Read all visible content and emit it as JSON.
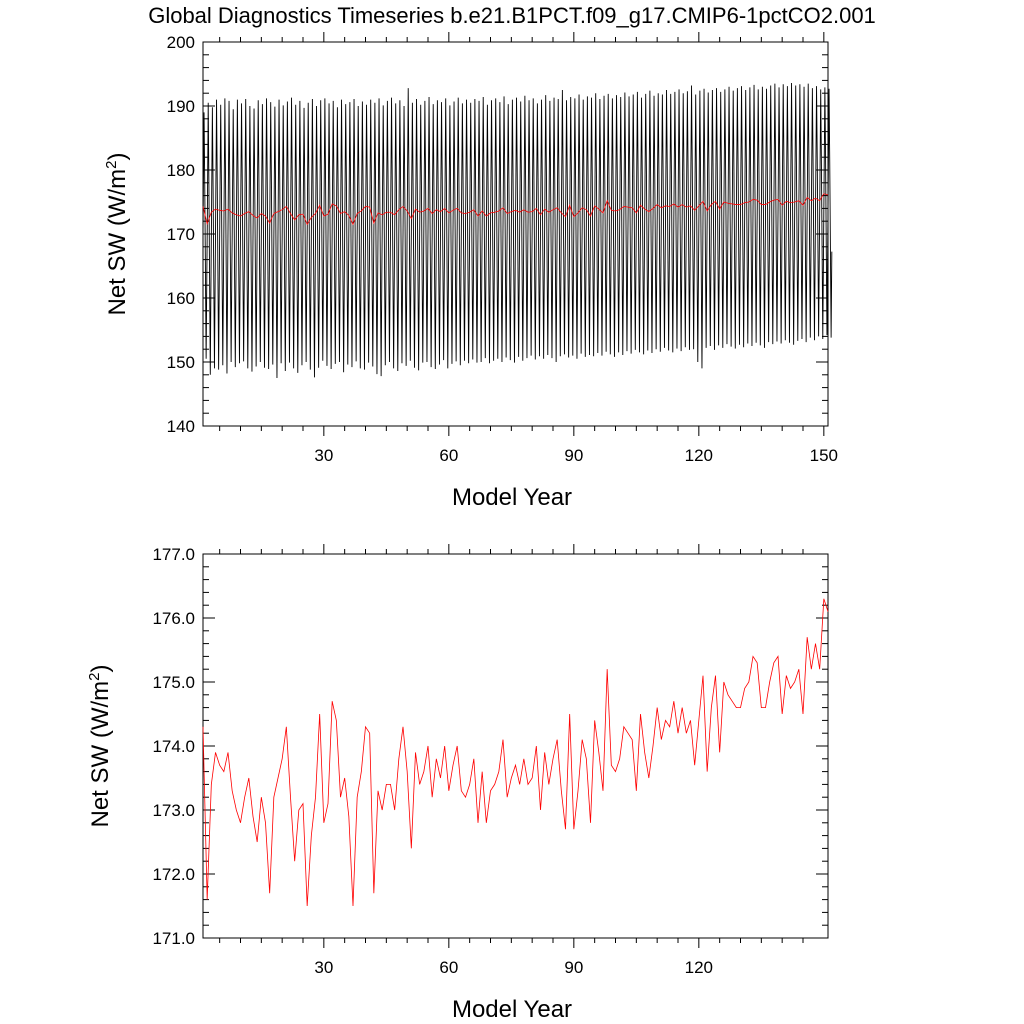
{
  "figure": {
    "title": "Global Diagnostics Timeseries b.e21.B1PCT.f09_g17.CMIP6-1pctCO2.001"
  },
  "chart_data": [
    {
      "type": "line",
      "xlabel": "Model Year",
      "ylabel_main": "Net SW (W/m",
      "ylabel_sup": "2",
      "ylabel_tail": ")",
      "xlim": [
        1,
        151
      ],
      "ylim": [
        140,
        200
      ],
      "x_ticks": [
        "30",
        "60",
        "90",
        "120",
        "150"
      ],
      "x_tick_values": [
        30,
        60,
        90,
        120,
        150
      ],
      "y_ticks": [
        "140",
        "150",
        "160",
        "170",
        "180",
        "190",
        "200"
      ],
      "y_tick_values": [
        140,
        150,
        160,
        170,
        180,
        190,
        200
      ],
      "grid": false,
      "colors": {
        "monthly": "#000000",
        "annual": "#ff0000"
      },
      "series": [
        {
          "id": "monthly",
          "color": "#000000",
          "description_of_values": "monthly global mean net SW, seasonal cycle; per-year approximate min and max",
          "year_min": [
            150.5,
            148.0,
            149.0,
            148.8,
            149.5,
            148.2,
            150.0,
            149.2,
            149.8,
            150.1,
            149.0,
            148.5,
            149.3,
            150.0,
            149.1,
            148.9,
            149.6,
            147.5,
            149.8,
            148.6,
            149.9,
            149.0,
            148.3,
            149.5,
            150.0,
            148.8,
            147.6,
            149.1,
            150.2,
            149.4,
            148.9,
            149.7,
            150.0,
            148.4,
            149.6,
            149.2,
            150.1,
            149.0,
            148.8,
            149.9,
            149.3,
            148.1,
            147.8,
            149.5,
            150.0,
            149.0,
            148.6,
            149.8,
            149.4,
            150.2,
            149.1,
            148.7,
            149.9,
            150.0,
            149.2,
            148.9,
            149.6,
            150.3,
            149.0,
            149.7,
            150.1,
            149.5,
            150.2,
            149.8,
            150.4,
            149.9,
            150.0,
            150.6,
            149.8,
            150.2,
            150.5,
            150.0,
            150.7,
            150.3,
            149.9,
            150.8,
            150.2,
            150.6,
            151.0,
            150.4,
            150.9,
            150.5,
            151.1,
            150.6,
            150.0,
            150.9,
            151.2,
            150.7,
            151.0,
            150.5,
            151.3,
            150.8,
            151.1,
            150.9,
            151.4,
            151.0,
            151.6,
            151.2,
            150.8,
            151.5,
            151.1,
            151.7,
            151.3,
            151.9,
            151.5,
            151.2,
            151.8,
            151.4,
            152.0,
            151.6,
            152.2,
            151.8,
            151.5,
            152.1,
            151.7,
            152.3,
            151.9,
            152.0,
            150.0,
            149.0,
            152.2,
            152.5,
            151.9,
            152.6,
            152.2,
            152.8,
            152.4,
            152.1,
            152.7,
            152.3,
            152.9,
            152.5,
            153.0,
            152.6,
            152.2,
            153.1,
            152.8,
            153.2,
            152.9,
            153.4,
            153.0,
            152.7,
            153.3,
            153.6,
            153.1,
            153.8,
            153.4,
            154.0,
            153.6,
            154.2,
            153.8
          ],
          "year_max": [
            189.0,
            190.5,
            189.8,
            191.0,
            190.2,
            191.2,
            190.8,
            189.5,
            191.0,
            190.4,
            191.1,
            190.0,
            189.6,
            190.9,
            190.3,
            191.2,
            190.6,
            189.9,
            191.0,
            190.1,
            190.7,
            191.3,
            190.2,
            190.8,
            189.7,
            190.5,
            191.1,
            190.0,
            190.9,
            191.2,
            190.4,
            190.8,
            189.8,
            191.0,
            190.3,
            190.6,
            191.1,
            190.0,
            190.7,
            190.2,
            191.0,
            190.5,
            191.2,
            190.1,
            190.8,
            191.3,
            190.4,
            190.9,
            190.0,
            192.8,
            190.5,
            191.1,
            190.2,
            190.8,
            191.4,
            190.3,
            190.9,
            190.6,
            191.2,
            190.1,
            190.7,
            191.3,
            190.4,
            191.0,
            190.5,
            191.1,
            190.8,
            191.4,
            190.2,
            190.9,
            191.2,
            190.6,
            191.5,
            190.3,
            191.0,
            191.3,
            190.7,
            191.6,
            190.9,
            191.2,
            190.4,
            191.0,
            191.7,
            190.8,
            191.3,
            191.1,
            192.5,
            190.9,
            191.4,
            191.2,
            191.8,
            191.0,
            191.5,
            191.3,
            192.0,
            191.1,
            191.6,
            191.9,
            191.2,
            191.7,
            191.4,
            192.1,
            191.5,
            191.8,
            192.2,
            191.3,
            191.9,
            192.4,
            191.6,
            192.0,
            191.8,
            192.5,
            191.9,
            192.2,
            192.6,
            192.0,
            192.3,
            193.2,
            191.8,
            192.4,
            192.7,
            192.1,
            192.5,
            192.8,
            192.2,
            192.6,
            193.0,
            192.4,
            192.8,
            193.1,
            192.5,
            192.9,
            193.3,
            192.6,
            193.0,
            192.7,
            193.2,
            193.5,
            192.9,
            193.4,
            193.1,
            193.6,
            193.2,
            193.4,
            193.0,
            193.5,
            192.8,
            193.1,
            192.6,
            192.9,
            192.7
          ]
        },
        {
          "id": "annual",
          "color": "#ff0000",
          "description_of_values": "annual global mean net SW",
          "x": [
            1,
            2,
            3,
            4,
            5,
            6,
            7,
            8,
            9,
            10,
            11,
            12,
            13,
            14,
            15,
            16,
            17,
            18,
            19,
            20,
            21,
            22,
            23,
            24,
            25,
            26,
            27,
            28,
            29,
            30,
            31,
            32,
            33,
            34,
            35,
            36,
            37,
            38,
            39,
            40,
            41,
            42,
            43,
            44,
            45,
            46,
            47,
            48,
            49,
            50,
            51,
            52,
            53,
            54,
            55,
            56,
            57,
            58,
            59,
            60,
            61,
            62,
            63,
            64,
            65,
            66,
            67,
            68,
            69,
            70,
            71,
            72,
            73,
            74,
            75,
            76,
            77,
            78,
            79,
            80,
            81,
            82,
            83,
            84,
            85,
            86,
            87,
            88,
            89,
            90,
            91,
            92,
            93,
            94,
            95,
            96,
            97,
            98,
            99,
            100,
            101,
            102,
            103,
            104,
            105,
            106,
            107,
            108,
            109,
            110,
            111,
            112,
            113,
            114,
            115,
            116,
            117,
            118,
            119,
            120,
            121,
            122,
            123,
            124,
            125,
            126,
            127,
            128,
            129,
            130,
            131,
            132,
            133,
            134,
            135,
            136,
            137,
            138,
            139,
            140,
            141,
            142,
            143,
            144,
            145,
            146,
            147,
            148,
            149,
            150,
            151
          ],
          "values": [
            174.3,
            171.6,
            173.4,
            173.9,
            173.7,
            173.6,
            173.9,
            173.3,
            173.0,
            172.8,
            173.2,
            173.5,
            172.9,
            172.5,
            173.2,
            172.8,
            171.7,
            173.2,
            173.5,
            173.8,
            174.3,
            173.2,
            172.2,
            173.0,
            173.1,
            171.5,
            172.6,
            173.2,
            174.5,
            172.8,
            173.1,
            174.7,
            174.4,
            173.2,
            173.5,
            172.9,
            171.5,
            173.2,
            173.6,
            174.3,
            174.2,
            171.7,
            173.3,
            173.0,
            173.4,
            173.4,
            173.0,
            173.8,
            174.3,
            173.6,
            172.4,
            173.9,
            173.4,
            173.6,
            174.0,
            173.2,
            173.8,
            173.5,
            174.0,
            173.3,
            173.7,
            174.0,
            173.3,
            173.2,
            173.4,
            173.8,
            172.8,
            173.6,
            172.8,
            173.3,
            173.4,
            173.6,
            174.1,
            173.2,
            173.5,
            173.7,
            173.4,
            173.8,
            173.4,
            173.5,
            174.0,
            173.0,
            173.9,
            173.4,
            173.8,
            174.1,
            173.3,
            172.7,
            174.5,
            172.7,
            173.3,
            174.1,
            173.8,
            172.8,
            174.4,
            173.9,
            173.3,
            175.2,
            173.7,
            173.6,
            173.8,
            174.3,
            174.2,
            174.1,
            173.3,
            174.5,
            173.9,
            173.5,
            174.0,
            174.6,
            174.1,
            174.4,
            174.3,
            174.7,
            174.2,
            174.6,
            174.2,
            174.4,
            173.7,
            174.4,
            175.1,
            173.6,
            174.6,
            175.1,
            173.9,
            175.0,
            174.8,
            174.7,
            174.6,
            174.6,
            174.9,
            175.0,
            175.4,
            175.3,
            174.6,
            174.6,
            175.0,
            175.3,
            175.4,
            174.5,
            175.1,
            174.9,
            175.0,
            175.2,
            174.5,
            175.7,
            175.2,
            175.6,
            175.2,
            176.3,
            176.1
          ]
        }
      ]
    },
    {
      "type": "line",
      "xlabel": "Model Year",
      "ylabel_main": "Net SW (W/m",
      "ylabel_sup": "2",
      "ylabel_tail": ")",
      "xlim": [
        1,
        151
      ],
      "ylim": [
        171.0,
        177.0
      ],
      "x_ticks": [
        "30",
        "60",
        "90",
        "120"
      ],
      "x_tick_values": [
        30,
        60,
        90,
        120
      ],
      "y_ticks": [
        "171.0",
        "172.0",
        "173.0",
        "174.0",
        "175.0",
        "176.0",
        "177.0"
      ],
      "y_tick_values": [
        171,
        172,
        173,
        174,
        175,
        176,
        177
      ],
      "grid": false,
      "series": [
        {
          "id": "annual",
          "color": "#ff0000",
          "ref": "annual"
        }
      ]
    }
  ]
}
